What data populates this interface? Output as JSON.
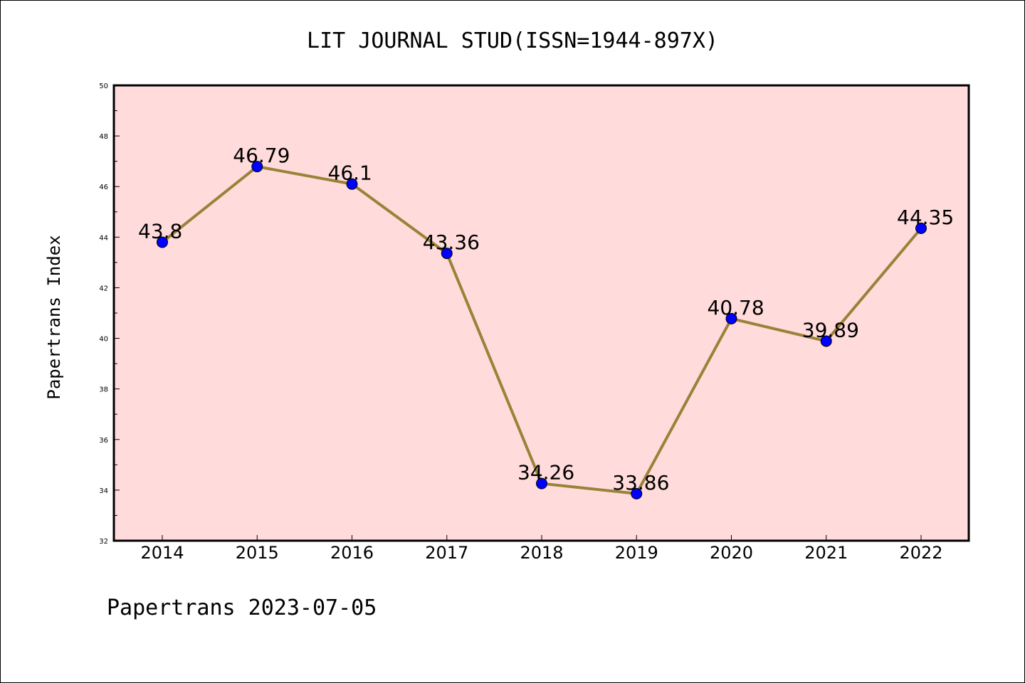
{
  "chart_data": {
    "type": "line",
    "title": "LIT JOURNAL STUD(ISSN=1944-897X)",
    "xlabel": "",
    "ylabel": "Papertrans Index",
    "footer": "Papertrans 2023-07-05",
    "categories": [
      "2014",
      "2015",
      "2016",
      "2017",
      "2018",
      "2019",
      "2020",
      "2021",
      "2022"
    ],
    "series": [
      {
        "values": [
          43.8,
          46.79,
          46.1,
          43.36,
          34.26,
          33.86,
          40.78,
          39.89,
          44.35
        ],
        "labels": [
          "43.8",
          "46.79",
          "46.1",
          "43.36",
          "34.26",
          "33.86",
          "40.78",
          "39.89",
          "44.35"
        ]
      }
    ],
    "ylim": [
      32,
      50
    ],
    "yticks": [
      "32",
      "34",
      "36",
      "38",
      "40",
      "42",
      "44",
      "46",
      "48",
      "50"
    ],
    "grid": false,
    "colors": {
      "plot_background": "#ffdcdb",
      "line": "#9a8239",
      "marker": "#0000ff"
    }
  }
}
